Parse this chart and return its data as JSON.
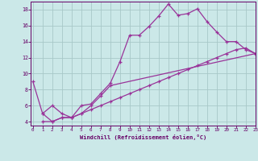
{
  "xlabel": "Windchill (Refroidissement éolien,°C)",
  "background_color": "#cbe8e8",
  "grid_color": "#a8c8c8",
  "line_color": "#993399",
  "xmin": 0,
  "xmax": 23,
  "ymin": 3.5,
  "ymax": 19.0,
  "yticks": [
    4,
    6,
    8,
    10,
    12,
    14,
    16,
    18
  ],
  "xticks": [
    0,
    1,
    2,
    3,
    4,
    5,
    6,
    7,
    8,
    9,
    10,
    11,
    12,
    13,
    14,
    15,
    16,
    17,
    18,
    19,
    20,
    21,
    22,
    23
  ],
  "series": [
    {
      "x": [
        0,
        1,
        2,
        3,
        4,
        5,
        6,
        7,
        8,
        9,
        10,
        11,
        12,
        13,
        14,
        15,
        16,
        17,
        18,
        19,
        20,
        21,
        22,
        23
      ],
      "y": [
        9.0,
        5.0,
        6.0,
        5.0,
        4.5,
        6.0,
        6.2,
        7.5,
        8.8,
        11.5,
        14.8,
        14.8,
        15.9,
        17.2,
        18.7,
        17.3,
        17.5,
        18.1,
        16.5,
        15.2,
        14.0,
        14.0,
        13.0,
        12.5
      ]
    },
    {
      "x": [
        1,
        2,
        3,
        4,
        5,
        6,
        7,
        8,
        23
      ],
      "y": [
        5.0,
        4.0,
        4.5,
        4.5,
        5.0,
        6.0,
        7.2,
        8.5,
        12.5
      ]
    },
    {
      "x": [
        1,
        2,
        3,
        4,
        5,
        6,
        7,
        8,
        9,
        10,
        11,
        12,
        13,
        14,
        15,
        16,
        17,
        18,
        19,
        20,
        21,
        22,
        23
      ],
      "y": [
        4.0,
        4.0,
        4.5,
        4.5,
        5.0,
        5.5,
        6.0,
        6.5,
        7.0,
        7.5,
        8.0,
        8.5,
        9.0,
        9.5,
        10.0,
        10.5,
        11.0,
        11.5,
        12.0,
        12.5,
        13.0,
        13.2,
        12.5
      ]
    }
  ]
}
